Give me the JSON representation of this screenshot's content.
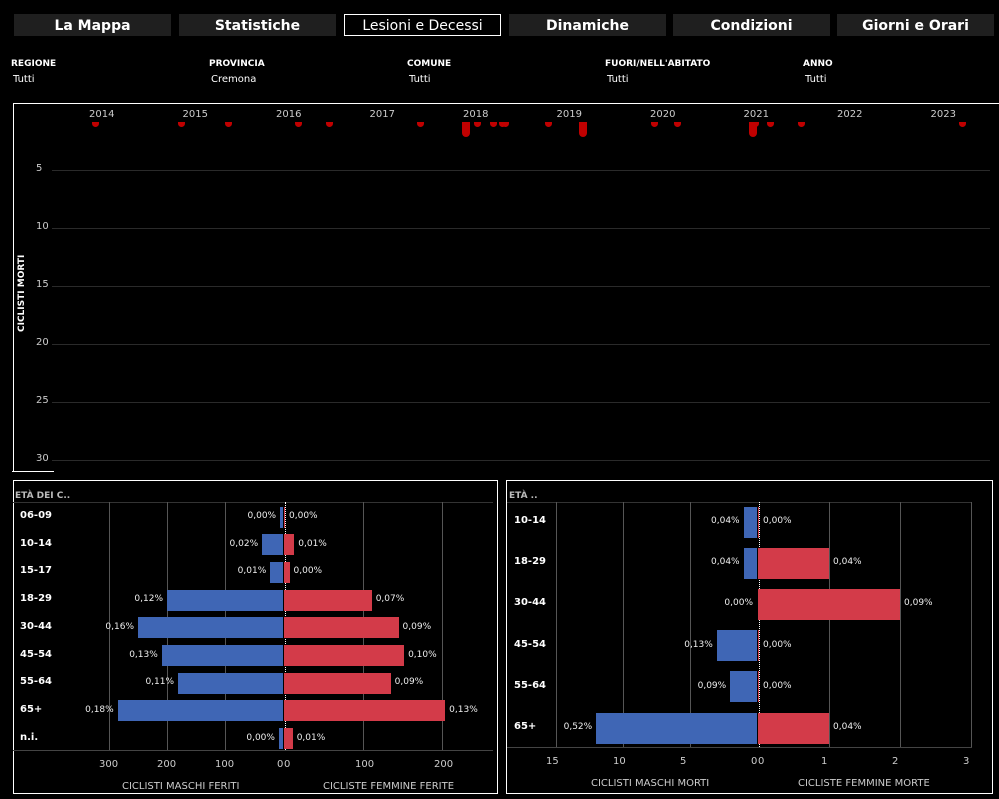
{
  "tabs": [
    {
      "label": "La Mappa"
    },
    {
      "label": "Statistiche"
    },
    {
      "label": "Lesioni e Decessi",
      "active": true
    },
    {
      "label": "Dinamiche"
    },
    {
      "label": "Condizioni"
    },
    {
      "label": "Giorni e Orari"
    }
  ],
  "filters": [
    {
      "label": "REGIONE",
      "value": "Tutti"
    },
    {
      "label": "PROVINCIA",
      "value": "Cremona"
    },
    {
      "label": "COMUNE",
      "value": "Tutti"
    },
    {
      "label": "FUORI/NELL'ABITATO",
      "value": "Tutti"
    },
    {
      "label": "ANNO",
      "value": "Tutti"
    }
  ],
  "colors": {
    "male": "#3f66b5",
    "female": "#d33b49",
    "deaths_mark": "#c00000"
  },
  "chart_data": [
    {
      "type": "bar",
      "ylabel": "CICLISTI MORTI",
      "x_ticks": [
        "2014",
        "2015",
        "2016",
        "2017",
        "2018",
        "2019",
        "2020",
        "2021",
        "2022",
        "2023"
      ],
      "y_ticks": [
        5,
        10,
        15,
        20,
        25,
        30
      ],
      "y_reversed": true,
      "points": [
        {
          "x": 2013.95,
          "y": 1
        },
        {
          "x": 2014.87,
          "y": 1
        },
        {
          "x": 2015.37,
          "y": 1
        },
        {
          "x": 2016.12,
          "y": 1
        },
        {
          "x": 2016.45,
          "y": 1
        },
        {
          "x": 2017.42,
          "y": 1
        },
        {
          "x": 2017.9,
          "y": 2
        },
        {
          "x": 2018.03,
          "y": 1
        },
        {
          "x": 2018.2,
          "y": 1
        },
        {
          "x": 2018.3,
          "y": 1
        },
        {
          "x": 2018.33,
          "y": 1
        },
        {
          "x": 2018.79,
          "y": 1
        },
        {
          "x": 2019.15,
          "y": 2
        },
        {
          "x": 2019.92,
          "y": 1
        },
        {
          "x": 2020.17,
          "y": 1
        },
        {
          "x": 2020.97,
          "y": 2
        },
        {
          "x": 2021.0,
          "y": 1
        },
        {
          "x": 2021.17,
          "y": 1
        },
        {
          "x": 2021.5,
          "y": 1
        },
        {
          "x": 2023.22,
          "y": 1
        }
      ]
    },
    {
      "type": "bar",
      "header": "ETÀ DEI C..",
      "categories": [
        "06-09",
        "10-14",
        "15-17",
        "18-29",
        "30-44",
        "45-54",
        "55-64",
        "65+",
        "n.i."
      ],
      "left": {
        "title": "CICLISTI MASCHI FERITI",
        "ticks": [
          300,
          200,
          100,
          0
        ],
        "max": 350,
        "values": [
          5,
          36,
          22,
          200,
          250,
          209,
          181,
          285,
          7
        ],
        "labels": [
          "0,00%",
          "0,02%",
          "0,01%",
          "0,12%",
          "0,16%",
          "0,13%",
          "0,11%",
          "0,18%",
          "0,00%"
        ]
      },
      "right": {
        "title": "CICLISTE FEMMINE FERITE",
        "ticks": [
          0,
          100,
          200
        ],
        "max": 265,
        "values": [
          0,
          13,
          7,
          111,
          145,
          152,
          135,
          204,
          11
        ],
        "labels": [
          "0,00%",
          "0,01%",
          "0,00%",
          "0,07%",
          "0,09%",
          "0,10%",
          "0,09%",
          "0,13%",
          "0,01%"
        ]
      }
    },
    {
      "type": "bar",
      "header": "ETÀ ..",
      "categories": [
        "10-14",
        "18-29",
        "30-44",
        "45-54",
        "55-64",
        "65+"
      ],
      "left": {
        "title": "CICLISTI MASCHI MORTI",
        "ticks": [
          15,
          10,
          5,
          0
        ],
        "max": 18,
        "values": [
          1,
          1,
          0,
          3,
          2,
          12
        ],
        "labels": [
          "0,04%",
          "0,04%",
          "0,00%",
          "0,13%",
          "0,09%",
          "0,52%"
        ]
      },
      "right": {
        "title": "CICLISTE FEMMINE MORTE",
        "ticks": [
          0,
          1,
          2,
          3
        ],
        "max": 3,
        "values": [
          0,
          1,
          2,
          0,
          0,
          1
        ],
        "labels": [
          "0,00%",
          "0,04%",
          "0,09%",
          "0,00%",
          "0,00%",
          "0,04%"
        ]
      }
    }
  ]
}
